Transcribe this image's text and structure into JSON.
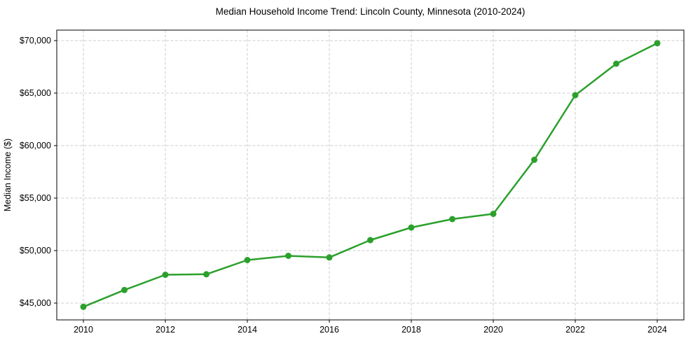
{
  "chart_data": {
    "type": "line",
    "title": "Median Household Income Trend: Lincoln County, Minnesota (2010-2024)",
    "ylabel": "Median Income ($)",
    "xlabel": "",
    "series_name": "Median Household Income",
    "x": [
      2010,
      2011,
      2012,
      2013,
      2014,
      2015,
      2016,
      2017,
      2018,
      2019,
      2020,
      2021,
      2022,
      2023,
      2024
    ],
    "values": [
      44650,
      46250,
      47700,
      47750,
      49100,
      49500,
      49350,
      51000,
      52200,
      53000,
      53500,
      58650,
      64800,
      67800,
      69750
    ],
    "x_ticks": [
      2010,
      2012,
      2014,
      2016,
      2018,
      2020,
      2022,
      2024
    ],
    "y_ticks": [
      45000,
      50000,
      55000,
      60000,
      65000,
      70000
    ],
    "y_tick_prefix": "$",
    "xlim": [
      2009.35,
      2024.65
    ],
    "ylim": [
      43400,
      71000
    ],
    "grid": true,
    "grid_style": "dashed",
    "legend_position": "none",
    "line_color": "#2ca02c",
    "marker": "circle",
    "background_color": "#ffffff",
    "grid_color": "#cccccc",
    "spine_color": "#000000",
    "text_color": "#000000"
  }
}
